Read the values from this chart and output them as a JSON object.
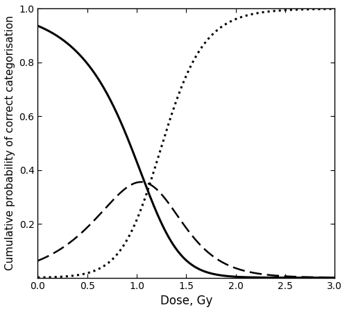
{
  "title": "",
  "xlabel": "Dose, Gy",
  "ylabel": "Cumulative probability of correct categorisation",
  "xlim": [
    0.0,
    3.0
  ],
  "ylim": [
    0.0,
    1.0
  ],
  "xticks": [
    0.0,
    0.5,
    1.0,
    1.5,
    2.0,
    2.5,
    3.0
  ],
  "yticks": [
    0.2,
    0.4,
    0.6,
    0.8,
    1.0
  ],
  "background_color": "#ffffff",
  "line_color": "#000000",
  "line_width": 1.8,
  "softmax_params": {
    "f0_intercept": 4.5,
    "f0_slope": -4.5,
    "f1_intercept": 1.8,
    "f1_slope": -2.0,
    "f2_intercept": -2.5,
    "f2_slope": 1.8
  }
}
